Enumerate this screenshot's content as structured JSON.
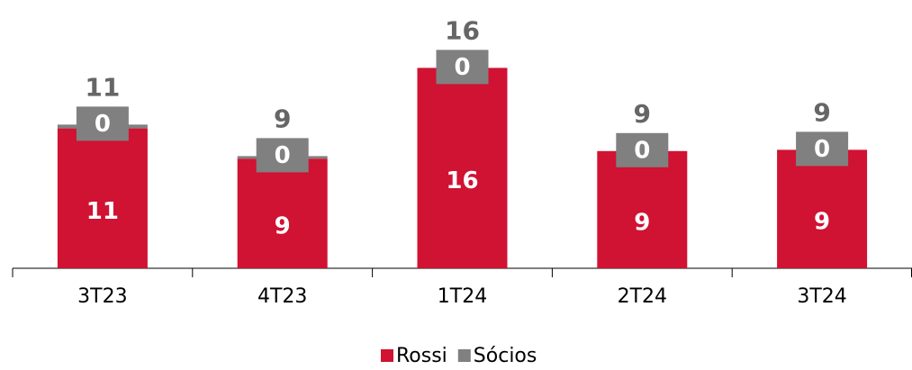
{
  "chart_data": {
    "type": "stacked_bar",
    "categories": [
      "3T23",
      "4T23",
      "1T24",
      "2T24",
      "3T24"
    ],
    "series": [
      {
        "name": "Rossi",
        "color": "#d01233",
        "values": [
          11.1,
          8.7,
          15.9,
          9.3,
          9.4
        ],
        "value_labels": [
          "11",
          "9",
          "16",
          "9",
          "9"
        ]
      },
      {
        "name": "Sócios",
        "color": "#808080",
        "values": [
          0.3,
          0.2,
          0,
          0,
          0
        ],
        "value_labels": [
          "0",
          "0",
          "0",
          "0",
          "0"
        ]
      }
    ],
    "total_labels": [
      "11",
      "9",
      "16",
      "9",
      "9"
    ],
    "ylim": [
      0,
      20
    ],
    "legend": "bottom"
  }
}
